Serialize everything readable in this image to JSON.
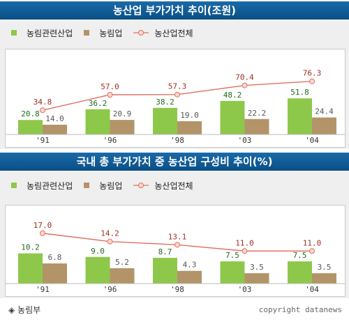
{
  "chart_data": [
    {
      "type": "bar",
      "title": "농산업 부가가치 추이(조원)",
      "categories": [
        "'91",
        "'96",
        "'98",
        "'03",
        "'04"
      ],
      "series": [
        {
          "name": "농림관련산업",
          "type": "bar",
          "values": [
            20.8,
            36.2,
            38.2,
            48.2,
            51.8
          ]
        },
        {
          "name": "농림업",
          "type": "bar",
          "values": [
            14.0,
            20.9,
            19.0,
            22.2,
            24.4
          ]
        },
        {
          "name": "농산업전체",
          "type": "line",
          "values": [
            34.8,
            57.0,
            57.3,
            70.4,
            76.3
          ]
        }
      ],
      "ylim": [
        0,
        90
      ]
    },
    {
      "type": "bar",
      "title": "국내 총 부가가치 중 농산업 구성비 추이(%)",
      "categories": [
        "'91",
        "'96",
        "'98",
        "'03",
        "'04"
      ],
      "series": [
        {
          "name": "농림관련산업",
          "type": "bar",
          "values": [
            10.2,
            9.0,
            8.7,
            7.5,
            7.5
          ]
        },
        {
          "name": "농림업",
          "type": "bar",
          "values": [
            6.8,
            5.2,
            4.3,
            3.5,
            3.5
          ]
        },
        {
          "name": "농산업전체",
          "type": "line",
          "values": [
            17.0,
            14.2,
            13.1,
            11.0,
            11.0
          ]
        }
      ],
      "ylim": [
        0,
        21
      ]
    }
  ],
  "colors": {
    "bar1": "#8dc84b",
    "bar2": "#b39468",
    "line": "#e07060",
    "label1": "#1e6a1e",
    "label2": "#555555",
    "label3": "#a03020"
  },
  "footer": {
    "source": "◈ 농림부",
    "copyright": "copyright datanews"
  }
}
